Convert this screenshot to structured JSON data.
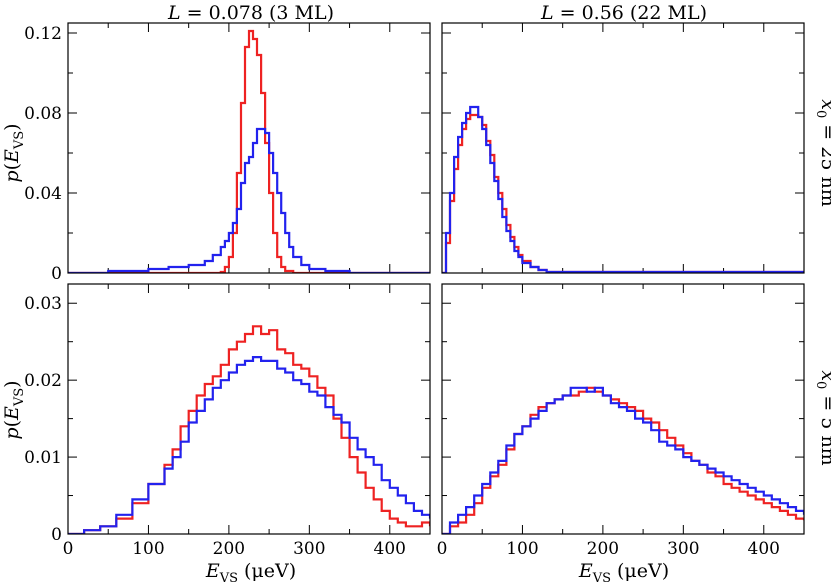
{
  "chart_data": [
    {
      "type": "line",
      "panel": "top-left",
      "title": "L = 0.078 (3 ML)",
      "right_label": "",
      "xlabel": "",
      "ylabel": "p(E_VS)",
      "xlim": [
        0,
        450
      ],
      "ylim": [
        0,
        0.125
      ],
      "x_ticks": [
        0,
        100,
        200,
        300,
        400
      ],
      "y_ticks": [
        0,
        0.04,
        0.08,
        0.12
      ],
      "y_tick_labels": [
        "0",
        "0.04",
        "0.08",
        "0.12"
      ],
      "x_tick_labels": [],
      "series": [
        {
          "color": "#ee2222",
          "x": [
            0,
            100,
            150,
            170,
            180,
            190,
            195,
            200,
            205,
            210,
            215,
            220,
            225,
            230,
            235,
            240,
            245,
            250,
            255,
            260,
            265,
            270,
            280,
            300,
            450
          ],
          "values": [
            0,
            0,
            0,
            0,
            0,
            0.0005,
            0.003,
            0.008,
            0.02,
            0.05,
            0.085,
            0.113,
            0.121,
            0.117,
            0.109,
            0.09,
            0.065,
            0.04,
            0.02,
            0.008,
            0.003,
            0.001,
            0,
            0,
            0
          ]
        },
        {
          "color": "#2222ee",
          "x": [
            0,
            50,
            100,
            125,
            150,
            170,
            180,
            190,
            195,
            200,
            205,
            210,
            215,
            220,
            225,
            230,
            235,
            240,
            245,
            250,
            255,
            260,
            265,
            270,
            275,
            280,
            290,
            300,
            320,
            350,
            450
          ],
          "values": [
            0,
            0.001,
            0.002,
            0.003,
            0.004,
            0.006,
            0.009,
            0.013,
            0.016,
            0.02,
            0.025,
            0.032,
            0.045,
            0.055,
            0.058,
            0.065,
            0.072,
            0.072,
            0.07,
            0.06,
            0.05,
            0.04,
            0.03,
            0.02,
            0.013,
            0.008,
            0.004,
            0.002,
            0.001,
            0,
            0
          ]
        }
      ]
    },
    {
      "type": "line",
      "panel": "top-right",
      "title": "L = 0.56 (22 ML)",
      "right_label": "x0 = 25 nm",
      "xlabel": "",
      "ylabel": "",
      "xlim": [
        0,
        450
      ],
      "ylim": [
        0,
        0.125
      ],
      "x_ticks": [
        0,
        100,
        200,
        300,
        400
      ],
      "y_ticks": [
        0,
        0.04,
        0.08,
        0.12
      ],
      "y_tick_labels": [],
      "x_tick_labels": [],
      "series": [
        {
          "color": "#ee2222",
          "x": [
            0,
            5,
            10,
            15,
            20,
            25,
            30,
            35,
            40,
            45,
            50,
            55,
            60,
            65,
            70,
            75,
            80,
            85,
            90,
            95,
            100,
            110,
            120,
            130,
            450
          ],
          "values": [
            0,
            0.015,
            0.036,
            0.052,
            0.064,
            0.072,
            0.077,
            0.079,
            0.079,
            0.078,
            0.074,
            0.066,
            0.059,
            0.048,
            0.04,
            0.032,
            0.024,
            0.018,
            0.013,
            0.009,
            0.006,
            0.003,
            0.0015,
            0.0005,
            0
          ]
        },
        {
          "color": "#2222ee",
          "x": [
            0,
            5,
            10,
            15,
            20,
            25,
            30,
            35,
            40,
            45,
            50,
            55,
            60,
            65,
            70,
            75,
            80,
            85,
            90,
            95,
            100,
            110,
            120,
            130,
            450
          ],
          "values": [
            0,
            0.02,
            0.04,
            0.058,
            0.068,
            0.075,
            0.08,
            0.083,
            0.083,
            0.078,
            0.072,
            0.064,
            0.055,
            0.046,
            0.037,
            0.028,
            0.021,
            0.016,
            0.011,
            0.008,
            0.005,
            0.003,
            0.0015,
            0.0005,
            0
          ]
        }
      ]
    },
    {
      "type": "line",
      "panel": "bottom-left",
      "title": "",
      "right_label": "",
      "xlabel": "E_VS (μeV)",
      "ylabel": "p(E_VS)",
      "xlim": [
        0,
        450
      ],
      "ylim": [
        0,
        0.0325
      ],
      "x_ticks": [
        0,
        100,
        200,
        300,
        400
      ],
      "y_ticks": [
        0,
        0.01,
        0.02,
        0.03
      ],
      "y_tick_labels": [
        "0",
        "0.01",
        "0.02",
        "0.03"
      ],
      "x_tick_labels": [
        "0",
        "100",
        "200",
        "300",
        "400"
      ],
      "series": [
        {
          "color": "#ee2222",
          "x": [
            0,
            20,
            40,
            60,
            80,
            100,
            120,
            130,
            140,
            150,
            160,
            170,
            180,
            190,
            200,
            210,
            220,
            230,
            240,
            250,
            260,
            270,
            280,
            290,
            300,
            310,
            320,
            330,
            340,
            350,
            360,
            370,
            380,
            390,
            400,
            410,
            420,
            430,
            440,
            450
          ],
          "values": [
            0,
            0.0005,
            0.001,
            0.002,
            0.004,
            0.0065,
            0.009,
            0.011,
            0.014,
            0.016,
            0.018,
            0.0195,
            0.0205,
            0.022,
            0.024,
            0.025,
            0.026,
            0.027,
            0.026,
            0.0265,
            0.024,
            0.0235,
            0.022,
            0.0215,
            0.0205,
            0.019,
            0.018,
            0.015,
            0.0125,
            0.01,
            0.008,
            0.006,
            0.0045,
            0.003,
            0.002,
            0.0015,
            0.001,
            0.001,
            0.0015,
            0.001
          ]
        },
        {
          "color": "#2222ee",
          "x": [
            0,
            20,
            40,
            60,
            80,
            100,
            120,
            130,
            140,
            150,
            160,
            170,
            180,
            190,
            200,
            210,
            220,
            230,
            240,
            250,
            260,
            270,
            280,
            290,
            300,
            310,
            320,
            330,
            340,
            350,
            360,
            370,
            380,
            390,
            400,
            410,
            420,
            430,
            440,
            450
          ],
          "values": [
            0,
            0.0005,
            0.001,
            0.0025,
            0.0045,
            0.0065,
            0.0085,
            0.01,
            0.012,
            0.0145,
            0.016,
            0.0175,
            0.019,
            0.02,
            0.021,
            0.022,
            0.0225,
            0.023,
            0.0225,
            0.0225,
            0.0215,
            0.021,
            0.02,
            0.0195,
            0.0185,
            0.018,
            0.0165,
            0.0155,
            0.0145,
            0.0125,
            0.011,
            0.01,
            0.009,
            0.007,
            0.006,
            0.005,
            0.004,
            0.003,
            0.0025,
            0.002
          ]
        }
      ]
    },
    {
      "type": "line",
      "panel": "bottom-right",
      "title": "",
      "right_label": "x0 = 5 nm",
      "xlabel": "E_VS (μeV)",
      "ylabel": "",
      "xlim": [
        0,
        450
      ],
      "ylim": [
        0,
        0.0325
      ],
      "x_ticks": [
        0,
        100,
        200,
        300,
        400
      ],
      "y_ticks": [
        0,
        0.01,
        0.02,
        0.03
      ],
      "y_tick_labels": [],
      "x_tick_labels": [
        "0",
        "100",
        "200",
        "300",
        "400"
      ],
      "series": [
        {
          "color": "#ee2222",
          "x": [
            0,
            10,
            20,
            30,
            40,
            50,
            60,
            70,
            80,
            90,
            100,
            110,
            120,
            130,
            140,
            150,
            160,
            170,
            180,
            190,
            200,
            210,
            220,
            230,
            240,
            250,
            260,
            270,
            280,
            290,
            300,
            310,
            320,
            330,
            340,
            350,
            360,
            370,
            380,
            390,
            400,
            410,
            420,
            430,
            440,
            450
          ],
          "values": [
            0,
            0.001,
            0.0015,
            0.0025,
            0.004,
            0.006,
            0.0075,
            0.009,
            0.011,
            0.013,
            0.014,
            0.0155,
            0.0165,
            0.017,
            0.0175,
            0.018,
            0.018,
            0.0185,
            0.019,
            0.0185,
            0.018,
            0.0175,
            0.017,
            0.0165,
            0.016,
            0.015,
            0.0145,
            0.0135,
            0.0125,
            0.0115,
            0.0105,
            0.0095,
            0.009,
            0.008,
            0.0075,
            0.0065,
            0.006,
            0.0055,
            0.005,
            0.0045,
            0.004,
            0.0035,
            0.003,
            0.0025,
            0.002,
            0.0018
          ]
        },
        {
          "color": "#2222ee",
          "x": [
            0,
            10,
            20,
            30,
            40,
            50,
            60,
            70,
            80,
            90,
            100,
            110,
            120,
            130,
            140,
            150,
            160,
            170,
            180,
            190,
            200,
            210,
            220,
            230,
            240,
            250,
            260,
            270,
            280,
            290,
            300,
            310,
            320,
            330,
            340,
            350,
            360,
            370,
            380,
            390,
            400,
            410,
            420,
            430,
            440,
            450
          ],
          "values": [
            0,
            0.0015,
            0.0025,
            0.0035,
            0.005,
            0.0065,
            0.008,
            0.0095,
            0.0115,
            0.013,
            0.014,
            0.015,
            0.016,
            0.017,
            0.0175,
            0.018,
            0.019,
            0.019,
            0.0185,
            0.019,
            0.018,
            0.017,
            0.0165,
            0.016,
            0.015,
            0.0145,
            0.0135,
            0.012,
            0.0115,
            0.011,
            0.01,
            0.0095,
            0.009,
            0.0085,
            0.008,
            0.0075,
            0.007,
            0.0065,
            0.006,
            0.0055,
            0.005,
            0.0045,
            0.004,
            0.0035,
            0.003,
            0.0025
          ]
        }
      ]
    }
  ]
}
